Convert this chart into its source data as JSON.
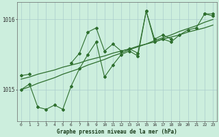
{
  "title": "Graphe pression niveau de la mer (hPa)",
  "background_color": "#cceedd",
  "grid_color": "#aacccc",
  "line_color": "#2d6e2d",
  "yticks": [
    1015,
    1016
  ],
  "ylim": [
    1014.55,
    1016.25
  ],
  "xlim": [
    -0.5,
    23.5
  ],
  "x_labels": [
    "0",
    "1",
    "2",
    "3",
    "4",
    "5",
    "6",
    "7",
    "8",
    "9",
    "10",
    "11",
    "12",
    "13",
    "14",
    "15",
    "16",
    "17",
    "18",
    "19",
    "20",
    "21",
    "22",
    "23"
  ],
  "trend1": [
    1015.0,
    1015.04,
    1015.09,
    1015.13,
    1015.17,
    1015.22,
    1015.26,
    1015.3,
    1015.35,
    1015.39,
    1015.43,
    1015.48,
    1015.52,
    1015.57,
    1015.61,
    1015.65,
    1015.7,
    1015.74,
    1015.78,
    1015.83,
    1015.87,
    1015.91,
    1015.96,
    1016.0
  ],
  "trend2": [
    1015.15,
    1015.18,
    1015.22,
    1015.25,
    1015.28,
    1015.32,
    1015.35,
    1015.38,
    1015.42,
    1015.45,
    1015.48,
    1015.52,
    1015.55,
    1015.58,
    1015.62,
    1015.65,
    1015.68,
    1015.72,
    1015.75,
    1015.78,
    1015.82,
    1015.85,
    1015.88,
    1015.92
  ],
  "jagged1": [
    1015.2,
    1015.22,
    null,
    null,
    null,
    null,
    1015.38,
    1015.52,
    1015.82,
    1015.88,
    1015.55,
    1015.65,
    1015.55,
    1015.58,
    1015.52,
    1016.12,
    1015.72,
    1015.78,
    1015.72,
    null,
    null,
    null,
    1016.08,
    1016.05
  ],
  "jagged2": [
    1015.0,
    1015.08,
    1014.75,
    1014.72,
    1014.78,
    1014.72,
    1015.05,
    1015.3,
    1015.5,
    1015.68,
    1015.18,
    1015.35,
    1015.5,
    1015.55,
    1015.48,
    1016.12,
    1015.68,
    1015.72,
    1015.68,
    1015.78,
    1015.85,
    1015.88,
    1016.08,
    1016.08
  ]
}
